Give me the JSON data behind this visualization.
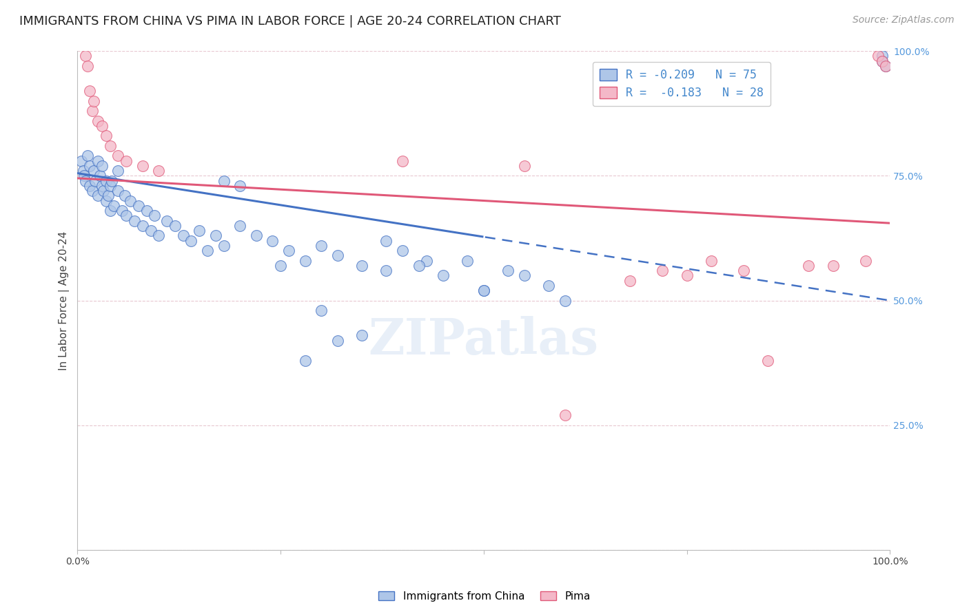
{
  "title": "IMMIGRANTS FROM CHINA VS PIMA IN LABOR FORCE | AGE 20-24 CORRELATION CHART",
  "source": "Source: ZipAtlas.com",
  "ylabel": "In Labor Force | Age 20-24",
  "watermark": "ZIPatlas",
  "china_R": -0.209,
  "china_N": 75,
  "pima_R": -0.183,
  "pima_N": 28,
  "china_color": "#aec6e8",
  "pima_color": "#f4b8c8",
  "china_line_color": "#4472c4",
  "pima_line_color": "#e05878",
  "xlim": [
    0,
    1
  ],
  "ylim": [
    0,
    1
  ],
  "background_color": "#ffffff",
  "title_fontsize": 13,
  "axis_fontsize": 11,
  "tick_fontsize": 10,
  "source_fontsize": 10,
  "china_x": [
    0.005,
    0.007,
    0.008,
    0.01,
    0.012,
    0.015,
    0.015,
    0.018,
    0.02,
    0.022,
    0.025,
    0.025,
    0.028,
    0.03,
    0.03,
    0.032,
    0.035,
    0.035,
    0.038,
    0.04,
    0.04,
    0.042,
    0.045,
    0.05,
    0.05,
    0.055,
    0.058,
    0.06,
    0.065,
    0.07,
    0.075,
    0.08,
    0.085,
    0.09,
    0.095,
    0.1,
    0.11,
    0.12,
    0.13,
    0.14,
    0.15,
    0.16,
    0.17,
    0.18,
    0.2,
    0.22,
    0.24,
    0.26,
    0.28,
    0.3,
    0.32,
    0.35,
    0.38,
    0.4,
    0.43,
    0.45,
    0.48,
    0.5,
    0.53,
    0.55,
    0.58,
    0.6,
    0.32,
    0.28,
    0.25,
    0.3,
    0.35,
    0.2,
    0.18,
    0.38,
    0.5,
    0.42,
    0.99,
    0.99,
    0.995
  ],
  "china_y": [
    0.78,
    0.76,
    0.75,
    0.74,
    0.79,
    0.77,
    0.73,
    0.72,
    0.76,
    0.74,
    0.71,
    0.78,
    0.75,
    0.73,
    0.77,
    0.72,
    0.74,
    0.7,
    0.71,
    0.73,
    0.68,
    0.74,
    0.69,
    0.72,
    0.76,
    0.68,
    0.71,
    0.67,
    0.7,
    0.66,
    0.69,
    0.65,
    0.68,
    0.64,
    0.67,
    0.63,
    0.66,
    0.65,
    0.63,
    0.62,
    0.64,
    0.6,
    0.63,
    0.61,
    0.65,
    0.63,
    0.62,
    0.6,
    0.58,
    0.61,
    0.59,
    0.57,
    0.56,
    0.6,
    0.58,
    0.55,
    0.58,
    0.52,
    0.56,
    0.55,
    0.53,
    0.5,
    0.42,
    0.38,
    0.57,
    0.48,
    0.43,
    0.73,
    0.74,
    0.62,
    0.52,
    0.57,
    0.99,
    0.98,
    0.97
  ],
  "pima_x": [
    0.01,
    0.012,
    0.015,
    0.018,
    0.02,
    0.025,
    0.03,
    0.035,
    0.04,
    0.05,
    0.06,
    0.08,
    0.1,
    0.4,
    0.55,
    0.68,
    0.72,
    0.75,
    0.78,
    0.82,
    0.85,
    0.9,
    0.93,
    0.97,
    0.985,
    0.99,
    0.995,
    0.6
  ],
  "pima_y": [
    0.99,
    0.97,
    0.92,
    0.88,
    0.9,
    0.86,
    0.85,
    0.83,
    0.81,
    0.79,
    0.78,
    0.77,
    0.76,
    0.78,
    0.77,
    0.54,
    0.56,
    0.55,
    0.58,
    0.56,
    0.38,
    0.57,
    0.57,
    0.58,
    0.99,
    0.98,
    0.97,
    0.27
  ],
  "china_line_y0": 0.755,
  "china_line_y1": 0.5,
  "pima_line_y0": 0.745,
  "pima_line_y1": 0.655
}
